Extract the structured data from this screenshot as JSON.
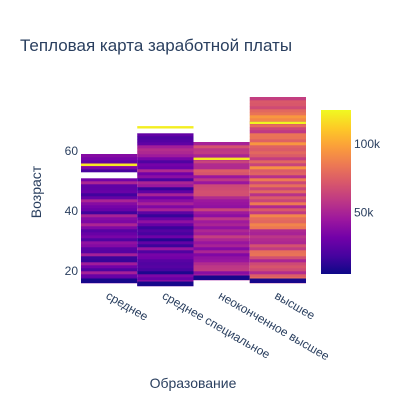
{
  "chart_data": {
    "type": "heatmap",
    "title": "Тепловая карта заработной платы",
    "xlabel": "Образование",
    "ylabel": "Возраст",
    "categories": [
      "среднее",
      "среднее специальное",
      "неоконченное высшее",
      "высшее"
    ],
    "y_ticks": [
      20,
      40,
      60
    ],
    "ylim": [
      15,
      79
    ],
    "colorscale": "plasma",
    "colorbar": {
      "range": [
        5000,
        125000
      ],
      "ticks": [
        50000,
        100000
      ],
      "tick_labels": [
        "50k",
        "100k"
      ]
    },
    "series": [
      {
        "category": "среднее",
        "age_range": [
          16,
          59
        ],
        "gaps": [
          51,
          52
        ],
        "highlights": [
          {
            "age": 55,
            "value": 120000
          },
          {
            "age": 16,
            "value": 118000
          }
        ]
      },
      {
        "category": "среднее специальное",
        "age_range": [
          15,
          68
        ],
        "gaps": [
          66,
          67
        ],
        "highlights": [
          {
            "age": 67.5,
            "value": 122000
          }
        ]
      },
      {
        "category": "неоконченное высшее",
        "age_range": [
          17,
          63
        ],
        "gaps": [],
        "highlights": [
          {
            "age": 57,
            "value": 120000
          },
          {
            "age": 17,
            "value": 95000
          }
        ]
      },
      {
        "category": "высшее",
        "age_range": [
          16,
          78
        ],
        "gaps": [],
        "highlights": [
          {
            "age": 69,
            "value": 124000
          },
          {
            "age": 16.5,
            "value": 122000
          }
        ]
      }
    ]
  }
}
